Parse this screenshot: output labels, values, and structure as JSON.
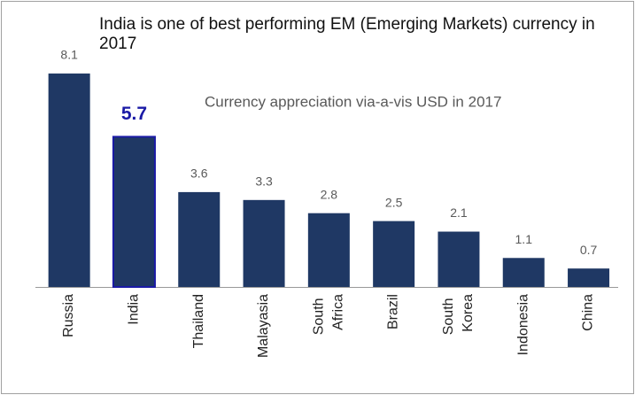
{
  "chart_data": {
    "type": "bar",
    "title": "India is one of best performing EM (Emerging Markets) currency in 2017",
    "subtitle": "Currency appreciation via-a-vis USD in 2017",
    "categories": [
      "Russia",
      "India",
      "Thailand",
      "Malayasia",
      "South Africa",
      "Brazil",
      "South Korea",
      "Indonesia",
      "China"
    ],
    "values": [
      8.1,
      5.7,
      3.6,
      3.3,
      2.8,
      2.5,
      2.1,
      1.1,
      0.7
    ],
    "color": "#1f3864",
    "edgecolors": [
      null,
      "#1a1aa6",
      null,
      null,
      null,
      null,
      null,
      null,
      null
    ],
    "ylim": [
      0,
      10
    ]
  }
}
